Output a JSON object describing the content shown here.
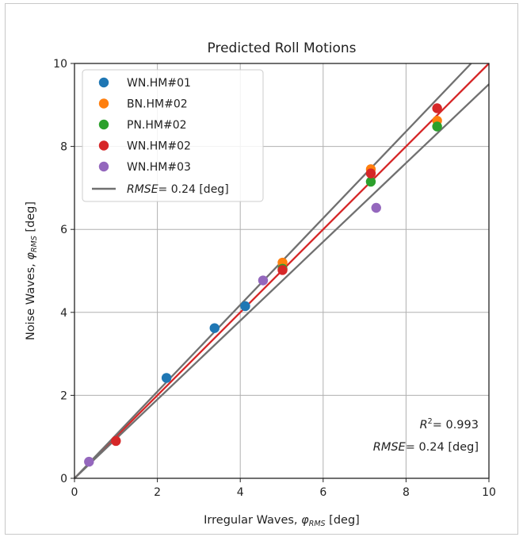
{
  "chart_data": {
    "type": "scatter",
    "title": "Predicted Roll Motions",
    "xlabel": "Irregular Waves, ",
    "xlabel_symbol": "φ",
    "xlabel_sub": "RMS",
    "xlabel_unit": " [deg]",
    "ylabel": "Noise Waves, ",
    "ylabel_symbol": "φ",
    "ylabel_sub": "RMS",
    "ylabel_unit": " [deg]",
    "xlim": [
      0,
      10
    ],
    "ylim": [
      0,
      10
    ],
    "xticks": [
      0,
      2,
      4,
      6,
      8,
      10
    ],
    "yticks": [
      0,
      2,
      4,
      6,
      8,
      10
    ],
    "x_tick_labels": [
      "0",
      "2",
      "4",
      "6",
      "8",
      "10"
    ],
    "y_tick_labels": [
      "0",
      "2",
      "4",
      "6",
      "8",
      "10"
    ],
    "grid": true,
    "legend_position": "top-left",
    "series": [
      {
        "name": "WN.HM#01",
        "color": "#1f77b4",
        "points": [
          [
            2.22,
            2.42
          ],
          [
            3.38,
            3.62
          ],
          [
            4.12,
            4.15
          ]
        ]
      },
      {
        "name": "BN.HM#02",
        "color": "#ff7f0e",
        "points": [
          [
            5.02,
            5.2
          ],
          [
            7.15,
            7.45
          ],
          [
            8.75,
            8.62
          ]
        ]
      },
      {
        "name": "PN.HM#02",
        "color": "#2ca02c",
        "points": [
          [
            5.02,
            5.05
          ],
          [
            7.15,
            7.15
          ],
          [
            8.75,
            8.48
          ]
        ]
      },
      {
        "name": "WN.HM#02",
        "color": "#d62728",
        "points": [
          [
            1.0,
            0.9
          ],
          [
            5.02,
            5.02
          ],
          [
            7.15,
            7.35
          ],
          [
            8.75,
            8.92
          ]
        ]
      },
      {
        "name": "WN.HM#03",
        "color": "#9467bd",
        "points": [
          [
            0.35,
            0.4
          ],
          [
            4.55,
            4.77
          ],
          [
            7.28,
            6.52
          ]
        ]
      }
    ],
    "lines": [
      {
        "role": "fit",
        "color": "#d62728",
        "slope": 1.0,
        "intercept": 0.0
      },
      {
        "role": "rmse_upper",
        "color": "#707070",
        "slope": 1.045,
        "intercept": 0.0
      },
      {
        "role": "rmse_lower",
        "color": "#707070",
        "slope": 0.95,
        "intercept": 0.0
      }
    ],
    "legend_rmse_label": "RMSE",
    "legend_rmse_value": "=  0.24 [deg]",
    "annotation": {
      "r2_label": "R",
      "r2_sup": "2",
      "r2_value": "= 0.993",
      "rmse_label": "RMSE",
      "rmse_value": "=  0.24 [deg]"
    }
  }
}
